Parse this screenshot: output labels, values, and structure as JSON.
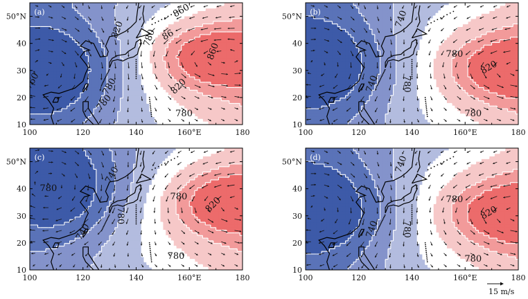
{
  "chart_data": [
    {
      "type": "contour",
      "panel_label": "(a)",
      "x_ticks": [
        "100",
        "120",
        "140",
        "160°E",
        "180"
      ],
      "y_ticks": [
        "50°N",
        "40",
        "30",
        "20",
        "10"
      ],
      "xlim": [
        100,
        180
      ],
      "ylim": [
        10,
        55
      ],
      "high_center": [
        170,
        35
      ],
      "low_center": [
        108,
        30
      ],
      "contour_labels": [
        {
          "text": "860",
          "lon": 169,
          "lat": 37,
          "rot": -70
        },
        {
          "text": "820",
          "lon": 156,
          "lat": 24,
          "rot": -45
        },
        {
          "text": "780",
          "lon": 158,
          "lat": 14,
          "rot": 0
        },
        {
          "text": "820",
          "lon": 133,
          "lat": 45,
          "rot": -70
        },
        {
          "text": "780",
          "lon": 145,
          "lat": 42,
          "rot": -70
        },
        {
          "text": "780",
          "lon": 130,
          "lat": 24,
          "rot": -60
        },
        {
          "text": "780",
          "lon": 128,
          "lat": 18,
          "rot": -50
        },
        {
          "text": "760",
          "lon": 101,
          "lat": 26,
          "rot": -60
        },
        {
          "text": "86",
          "lon": 152,
          "lat": 43,
          "rot": -30
        },
        {
          "text": "860",
          "lon": 157,
          "lat": 52,
          "rot": -30
        }
      ]
    },
    {
      "type": "contour",
      "panel_label": "(b)",
      "x_ticks": [
        "100",
        "120",
        "140",
        "160°E",
        "180"
      ],
      "y_ticks": [
        "50°N",
        "40",
        "30",
        "20",
        "10"
      ],
      "xlim": [
        100,
        180
      ],
      "ylim": [
        10,
        55
      ],
      "high_center": [
        178,
        31
      ],
      "low_center": [
        106,
        32
      ],
      "contour_labels": [
        {
          "text": "740",
          "lon": 136,
          "lat": 49,
          "rot": -70
        },
        {
          "text": "780",
          "lon": 156,
          "lat": 36,
          "rot": 0
        },
        {
          "text": "820",
          "lon": 169,
          "lat": 31,
          "rot": -30
        },
        {
          "text": "740",
          "lon": 125,
          "lat": 25,
          "rot": -70
        },
        {
          "text": "780",
          "lon": 138,
          "lat": 25,
          "rot": 90
        },
        {
          "text": "780",
          "lon": 163,
          "lat": 14,
          "rot": 0
        }
      ]
    },
    {
      "type": "contour",
      "panel_label": "(c)",
      "x_ticks": [
        "100",
        "120",
        "140",
        "160°E",
        "180"
      ],
      "y_ticks": [
        "50°N",
        "40",
        "30",
        "20",
        "10"
      ],
      "xlim": [
        100,
        180
      ],
      "ylim": [
        10,
        55
      ],
      "high_center": [
        177,
        35
      ],
      "low_center": [
        110,
        40
      ],
      "contour_labels": [
        {
          "text": "780",
          "lon": 107,
          "lat": 40,
          "rot": 0
        },
        {
          "text": "740",
          "lon": 131,
          "lat": 45,
          "rot": -60
        },
        {
          "text": "780",
          "lon": 156,
          "lat": 37,
          "rot": 0
        },
        {
          "text": "820",
          "lon": 169,
          "lat": 34,
          "rot": -45
        },
        {
          "text": "740",
          "lon": 120,
          "lat": 24,
          "rot": -60
        },
        {
          "text": "780",
          "lon": 134,
          "lat": 30,
          "rot": 90
        },
        {
          "text": "780",
          "lon": 155,
          "lat": 15,
          "rot": 0
        }
      ]
    },
    {
      "type": "contour",
      "panel_label": "(d)",
      "x_ticks": [
        "100",
        "120",
        "140",
        "160°E",
        "180"
      ],
      "y_ticks": [
        "50°N",
        "40",
        "30",
        "20",
        "10"
      ],
      "xlim": [
        100,
        180
      ],
      "ylim": [
        10,
        55
      ],
      "high_center": [
        178,
        31
      ],
      "low_center": [
        106,
        32
      ],
      "contour_labels": [
        {
          "text": "740",
          "lon": 136,
          "lat": 49,
          "rot": -70
        },
        {
          "text": "780",
          "lon": 156,
          "lat": 36,
          "rot": 0
        },
        {
          "text": "820",
          "lon": 169,
          "lat": 31,
          "rot": -30
        },
        {
          "text": "740",
          "lon": 125,
          "lat": 25,
          "rot": -70
        },
        {
          "text": "780",
          "lon": 138,
          "lat": 25,
          "rot": 90
        },
        {
          "text": "780",
          "lon": 163,
          "lat": 14,
          "rot": 0
        }
      ]
    }
  ],
  "reference_vector": {
    "label": "15 m/s"
  },
  "colors": {
    "blue_levels": [
      "#3d5aa8",
      "#5a73b8",
      "#8493cb",
      "#b3bcdf"
    ],
    "neutral": "#ffffff",
    "red_levels": [
      "#f6c8c8",
      "#f29a9a",
      "#ec6b6b"
    ],
    "contour_line": "#ffffff",
    "coast": "#000000"
  }
}
